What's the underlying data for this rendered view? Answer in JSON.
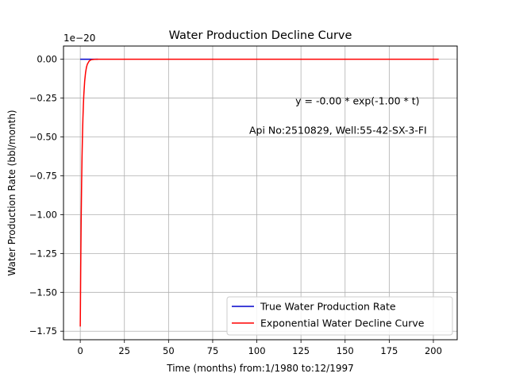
{
  "chart_data": {
    "type": "line",
    "title": "Water Production Decline Curve",
    "xlabel": "Time (months) from:1/1980 to:12/1997",
    "ylabel": "Water Production Rate (bbl/month)",
    "y_offset_label": "1e−20",
    "xlim": [
      -9.5,
      213.5
    ],
    "ylim": [
      -1.805,
      0.085
    ],
    "x_ticks": [
      0,
      25,
      50,
      75,
      100,
      125,
      150,
      175,
      200
    ],
    "x_tick_labels": [
      "0",
      "25",
      "50",
      "75",
      "100",
      "125",
      "150",
      "175",
      "200"
    ],
    "y_ticks": [
      0.0,
      -0.25,
      -0.5,
      -0.75,
      -1.0,
      -1.25,
      -1.5,
      -1.75
    ],
    "y_tick_labels": [
      "0.00",
      "−0.25",
      "−0.50",
      "−0.75",
      "−1.00",
      "−1.25",
      "−1.50",
      "−1.75"
    ],
    "grid": true,
    "legend_position": "bottom-right",
    "annotations": [
      {
        "text": "y = -0.00 * exp(-1.00 * t)",
        "x": 157,
        "y": -0.29
      },
      {
        "text": "Api No:2510829, Well:55-42-SX-3-FI",
        "x": 146,
        "y": -0.48
      }
    ],
    "series": [
      {
        "name": "True Water Production Rate",
        "color": "#0000cc",
        "x": [
          0,
          10
        ],
        "y": [
          0,
          0
        ]
      },
      {
        "name": "Exponential Water Decline Curve",
        "color": "#ff0000",
        "x": [
          0,
          0.25,
          0.5,
          0.75,
          1,
          1.25,
          1.5,
          1.75,
          2,
          2.5,
          3,
          3.5,
          4,
          5,
          6,
          7,
          8,
          10,
          15,
          25,
          50,
          100,
          150,
          203
        ],
        "y": [
          -1.72,
          -1.34,
          -1.04,
          -0.81,
          -0.63,
          -0.49,
          -0.38,
          -0.3,
          -0.23,
          -0.14,
          -0.086,
          -0.052,
          -0.032,
          -0.012,
          -0.004,
          -0.0016,
          -0.0006,
          0,
          0,
          0,
          0,
          0,
          0,
          0
        ]
      }
    ]
  }
}
